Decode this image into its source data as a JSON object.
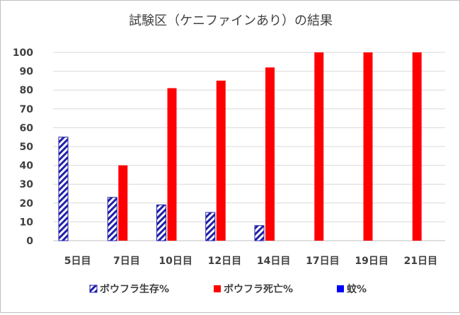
{
  "chart_data": {
    "type": "bar",
    "title": "試験区（ケニファインあり）の結果",
    "categories": [
      "5日目",
      "7日目",
      "10日目",
      "12日目",
      "14日目",
      "17日目",
      "19日目",
      "21日目"
    ],
    "series": [
      {
        "name": "ボウフラ生存%",
        "values": [
          55,
          23,
          19,
          15,
          8,
          0,
          0,
          0
        ],
        "color": "#1f1fa8",
        "pattern": "diagonal-hatch"
      },
      {
        "name": "ボウフラ死亡%",
        "values": [
          0,
          40,
          81,
          85,
          92,
          100,
          100,
          100
        ],
        "color": "#ff0000"
      },
      {
        "name": "蚊%",
        "values": [
          0,
          0,
          0,
          0,
          0,
          0,
          0,
          0
        ],
        "color": "#0000ff"
      }
    ],
    "ylim": [
      0,
      100
    ],
    "yticks": [
      0,
      10,
      20,
      30,
      40,
      50,
      60,
      70,
      80,
      90,
      100
    ],
    "grid": true,
    "legend_position": "bottom"
  }
}
